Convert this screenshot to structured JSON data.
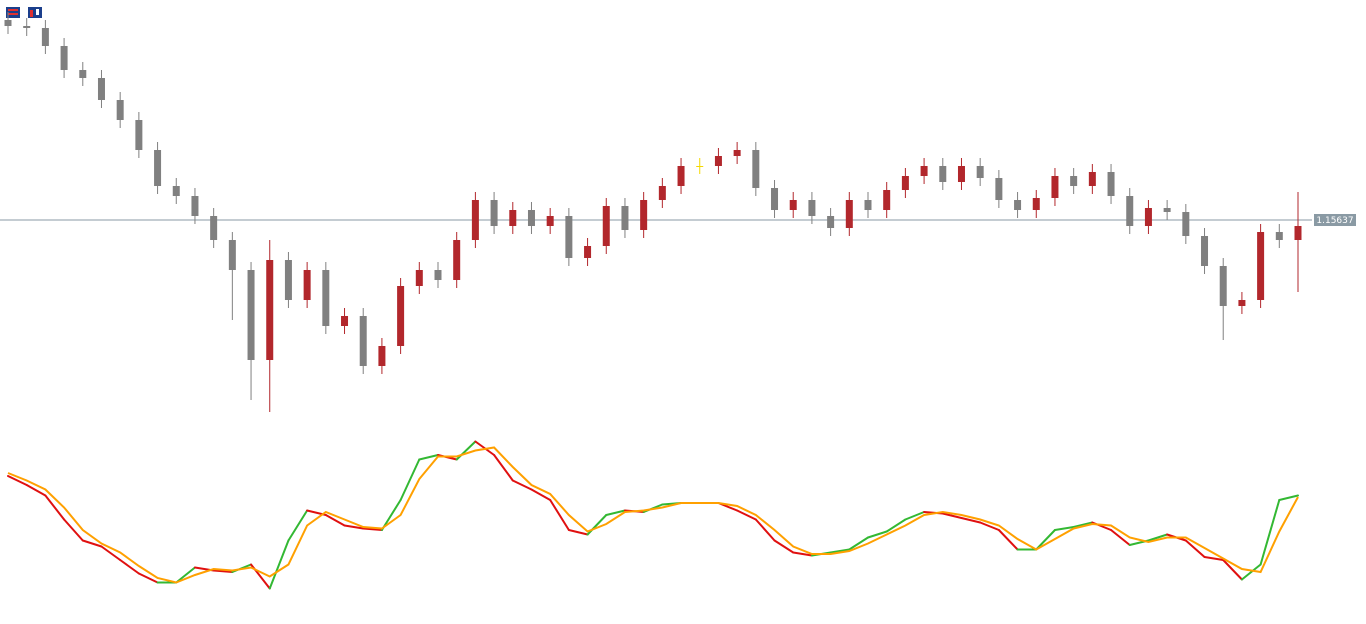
{
  "chart_data": [
    {
      "type": "candlestick",
      "ylim": [
        1.14587,
        1.16737
      ],
      "current_price": 1.15637,
      "bull_color": "#b2272c",
      "bear_color": "#808080",
      "doji_color": "#f5d800",
      "price_line_color": "#8a9aa4",
      "open": [
        1.16637,
        1.16607,
        1.16597,
        1.16507,
        1.16387,
        1.16347,
        1.16237,
        1.16137,
        1.15987,
        1.15807,
        1.15757,
        1.15657,
        1.15537,
        1.15387,
        1.14937,
        1.15437,
        1.15237,
        1.15387,
        1.15107,
        1.15157,
        1.14907,
        1.15007,
        1.15307,
        1.15387,
        1.15337,
        1.15537,
        1.15737,
        1.15607,
        1.15687,
        1.15607,
        1.15657,
        1.15447,
        1.15507,
        1.15707,
        1.15587,
        1.15737,
        1.15807,
        1.15907,
        1.15907,
        1.15957,
        1.15987,
        1.15797,
        1.15687,
        1.15737,
        1.15657,
        1.15597,
        1.15737,
        1.15687,
        1.15787,
        1.15857,
        1.15907,
        1.15827,
        1.15907,
        1.15847,
        1.15737,
        1.15687,
        1.15747,
        1.15857,
        1.15807,
        1.15877,
        1.15757,
        1.15607,
        1.15697,
        1.15677,
        1.15557,
        1.15407,
        1.15207,
        1.15237,
        1.15577,
        1.15537
      ],
      "high": [
        1.16677,
        1.16647,
        1.16637,
        1.16547,
        1.16427,
        1.16387,
        1.16277,
        1.16177,
        1.16027,
        1.15847,
        1.15797,
        1.15697,
        1.15577,
        1.15427,
        1.15537,
        1.15477,
        1.15427,
        1.15427,
        1.15197,
        1.15197,
        1.15047,
        1.15347,
        1.15427,
        1.15427,
        1.15577,
        1.15777,
        1.15777,
        1.15727,
        1.15727,
        1.15697,
        1.15697,
        1.15547,
        1.15747,
        1.15747,
        1.15777,
        1.15847,
        1.15947,
        1.15947,
        1.15997,
        1.16027,
        1.16027,
        1.15837,
        1.15777,
        1.15777,
        1.15697,
        1.15777,
        1.15777,
        1.15827,
        1.15897,
        1.15947,
        1.15947,
        1.15947,
        1.15947,
        1.15887,
        1.15777,
        1.15787,
        1.15897,
        1.15897,
        1.15917,
        1.15917,
        1.15797,
        1.15737,
        1.15737,
        1.15717,
        1.15597,
        1.15447,
        1.15277,
        1.15617,
        1.15617,
        1.15777
      ],
      "low": [
        1.16567,
        1.16557,
        1.16467,
        1.16347,
        1.16307,
        1.16197,
        1.16097,
        1.15947,
        1.15767,
        1.15717,
        1.15617,
        1.15497,
        1.15137,
        1.14737,
        1.14677,
        1.15197,
        1.15197,
        1.15067,
        1.15067,
        1.14867,
        1.14867,
        1.14967,
        1.15267,
        1.15297,
        1.15297,
        1.15497,
        1.15567,
        1.15567,
        1.15567,
        1.15567,
        1.15407,
        1.15407,
        1.15467,
        1.15547,
        1.15547,
        1.15697,
        1.15767,
        1.15867,
        1.15867,
        1.15917,
        1.15757,
        1.15647,
        1.15647,
        1.15617,
        1.15557,
        1.15557,
        1.15647,
        1.15647,
        1.15747,
        1.15817,
        1.15787,
        1.15787,
        1.15807,
        1.15697,
        1.15647,
        1.15647,
        1.15707,
        1.15767,
        1.15767,
        1.15717,
        1.15567,
        1.15567,
        1.15637,
        1.15517,
        1.15367,
        1.15037,
        1.15167,
        1.15197,
        1.15497,
        1.15277
      ],
      "close": [
        1.16607,
        1.16597,
        1.16507,
        1.16387,
        1.16347,
        1.16237,
        1.16137,
        1.15987,
        1.15807,
        1.15757,
        1.15657,
        1.15537,
        1.15387,
        1.14937,
        1.15437,
        1.15237,
        1.15387,
        1.15107,
        1.15157,
        1.14907,
        1.15007,
        1.15307,
        1.15387,
        1.15337,
        1.15537,
        1.15737,
        1.15607,
        1.15687,
        1.15607,
        1.15657,
        1.15447,
        1.15507,
        1.15707,
        1.15587,
        1.15737,
        1.15807,
        1.15907,
        1.15907,
        1.15957,
        1.15987,
        1.15797,
        1.15687,
        1.15737,
        1.15657,
        1.15597,
        1.15737,
        1.15687,
        1.15787,
        1.15857,
        1.15907,
        1.15827,
        1.15907,
        1.15847,
        1.15737,
        1.15687,
        1.15747,
        1.15857,
        1.15807,
        1.15877,
        1.15757,
        1.15607,
        1.15697,
        1.15677,
        1.15557,
        1.15407,
        1.15207,
        1.15237,
        1.15577,
        1.15537,
        1.15607
      ]
    },
    {
      "type": "line",
      "ylim": [
        0,
        100
      ],
      "series": [
        {
          "up_color": "#33b833",
          "down_color": "#e01010",
          "values": [
            76,
            70,
            63,
            47,
            33,
            29,
            20,
            11,
            5,
            5,
            15,
            13,
            12,
            17,
            1,
            33,
            53,
            50,
            43,
            41,
            40,
            60,
            87,
            90,
            87,
            99,
            90,
            73,
            67,
            60,
            40,
            37,
            50,
            53,
            52,
            57,
            58,
            58,
            58,
            53,
            47,
            33,
            25,
            23,
            25,
            27,
            35,
            39,
            47,
            52,
            51,
            48,
            45,
            40,
            27,
            27,
            40,
            42,
            45,
            40,
            30,
            33,
            37,
            33,
            22,
            20,
            7,
            17,
            60,
            63
          ]
        },
        {
          "color": "#ffa000",
          "values": [
            78,
            73,
            67,
            55,
            40,
            31,
            25,
            16,
            8,
            5,
            10,
            14,
            13,
            15,
            9,
            17,
            43,
            52,
            47,
            42,
            41,
            50,
            74,
            89,
            89,
            93,
            95,
            82,
            70,
            64,
            50,
            39,
            44,
            52,
            53,
            55,
            58,
            58,
            58,
            56,
            50,
            40,
            29,
            24,
            24,
            26,
            31,
            37,
            43,
            50,
            52,
            50,
            47,
            43,
            34,
            27,
            34,
            41,
            44,
            43,
            35,
            32,
            35,
            35,
            28,
            21,
            14,
            12,
            39,
            62
          ]
        }
      ]
    }
  ]
}
